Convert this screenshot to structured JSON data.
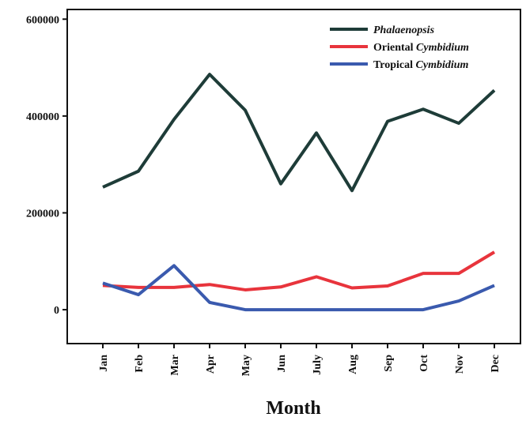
{
  "chart_data": {
    "type": "line",
    "x_label": "Month",
    "categories": [
      "Jan",
      "Feb",
      "Mar",
      "Apr",
      "May",
      "Jun",
      "July",
      "Aug",
      "Sep",
      "Oct",
      "Nov",
      "Dec"
    ],
    "series": [
      {
        "name": "Phalaenopsis",
        "color": "#1e3c38",
        "values": [
          253000,
          286000,
          393000,
          486000,
          412000,
          260000,
          365000,
          246000,
          389000,
          414000,
          385000,
          453000
        ]
      },
      {
        "name": "Oriental Cymbidium",
        "color": "#e8343c",
        "values": [
          50000,
          46000,
          46000,
          52000,
          41000,
          47000,
          68000,
          45000,
          49000,
          75000,
          75000,
          119000
        ]
      },
      {
        "name": "Tropical Cymbidium",
        "color": "#3a5aae",
        "values": [
          55000,
          31000,
          91000,
          15000,
          0,
          0,
          0,
          0,
          0,
          0,
          18000,
          50000
        ]
      }
    ],
    "ylim": [
      -70000,
      620000
    ],
    "yticks": [
      0,
      200000,
      400000,
      600000
    ],
    "legend": "upper right"
  }
}
